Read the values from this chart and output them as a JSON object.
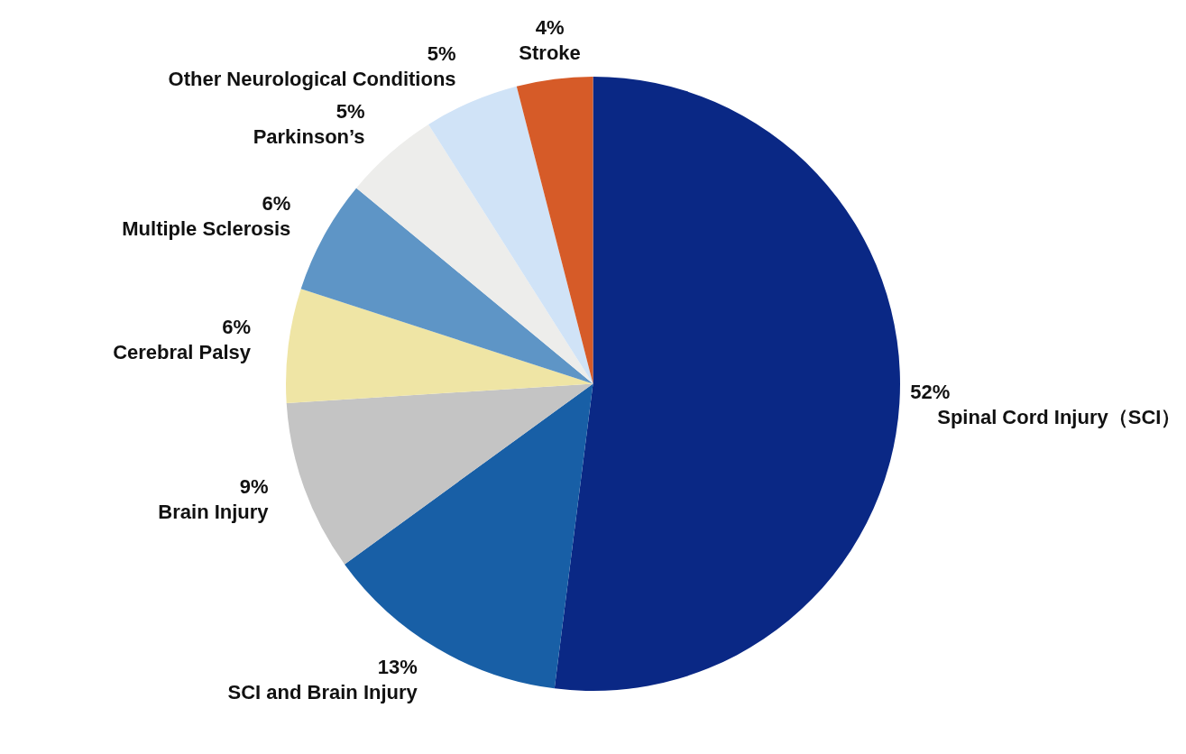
{
  "chart_data": {
    "type": "pie",
    "categories": [
      "Spinal Cord Injury（SCI）",
      "SCI and Brain Injury",
      "Brain Injury",
      "Cerebral Palsy",
      "Multiple Sclerosis",
      "Parkinson’s",
      "Other Neurological Conditions",
      "Stroke"
    ],
    "values": [
      52,
      13,
      9,
      6,
      6,
      5,
      5,
      4
    ],
    "value_labels": [
      "52%",
      "13%",
      "9%",
      "6%",
      "6%",
      "5%",
      "5%",
      "4%"
    ],
    "colors": [
      "#0a2885",
      "#185fa6",
      "#c4c4c4",
      "#efe5a5",
      "#5e95c6",
      "#ededeb",
      "#d0e3f7",
      "#d65b28"
    ],
    "legend": false
  }
}
